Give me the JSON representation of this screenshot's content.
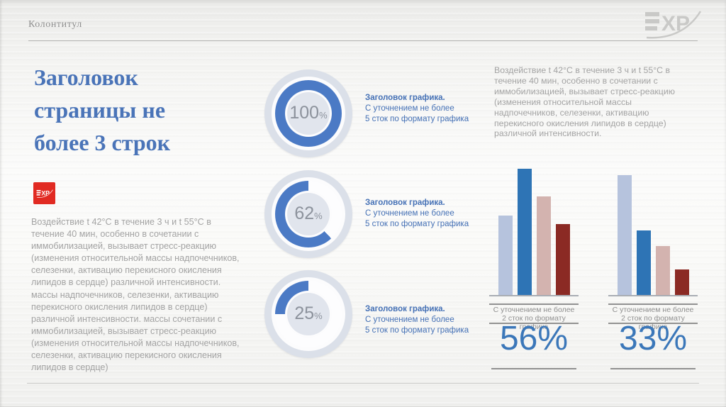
{
  "slide": {
    "header_label": "Колонтитул",
    "title_lines": [
      "Заголовок",
      "страницы не",
      "более 3 строк"
    ],
    "title_full": "Заголовок страницы не более 3 строк",
    "brand": {
      "logo_text": "EXP",
      "logo_xp": "XP"
    }
  },
  "left_column": {
    "body": "Воздействие t 42°C в течение 3 ч и t 55°C в течение 40 мин, особенно в сочетании с иммобилизацией, вызывает стресс-реакцию (изменения относительной массы надпочечников, селезенки, активацию перекисного окисления липидов в сердце) различной интенсивности. массы надпочечников, селезенки, активацию перекисного окисления липидов в сердце) различной интенсивности. массы сочетании с иммобилизацией, вызывает стресс-реакцию (изменения относительной массы надпочечников, селезенки, активацию перекисного окисления липидов в сердце)"
  },
  "right_column": {
    "body": "Воздействие t 42°C в течение 3 ч и t 55°C в течение 40 мин, особенно в сочетании с иммобилизацией, вызывает стресс-реакцию (изменения относительной массы надпочечников, селезенки, активацию перекисного окисления липидов в сердце) различной интенсивности."
  },
  "chart_data": {
    "donuts": [
      {
        "type": "pie",
        "subtype": "donut",
        "value_pct": 100,
        "value_label": "100",
        "unit": "%",
        "caption_title": "Заголовок графика.",
        "caption_line2": "С уточнением не более",
        "caption_line3": "5 сток по формату графика"
      },
      {
        "type": "pie",
        "subtype": "donut",
        "value_pct": 62,
        "value_label": "62",
        "unit": "%",
        "caption_title": "Заголовок графика.",
        "caption_line2": "С уточнением не более",
        "caption_line3": "5 сток по формату графика"
      },
      {
        "type": "pie",
        "subtype": "donut",
        "value_pct": 25,
        "value_label": "25",
        "unit": "%",
        "caption_title": "Заголовок графика.",
        "caption_line2": "С уточнением не более",
        "caption_line3": "5 сток по формату графика"
      }
    ],
    "bar_charts": [
      {
        "type": "bar",
        "categories": [],
        "values": [
          63,
          100,
          78,
          56
        ],
        "ymax": 100,
        "bar_colors": [
          "#b6c3dd",
          "#2e74b5",
          "#d3b3af",
          "#8b2a24"
        ],
        "grid": false,
        "legend": false,
        "caption_line1": "С уточнением не более",
        "caption_line2": "2 сток по формату",
        "caption_line3": "графика",
        "big_value": "56%"
      },
      {
        "type": "bar",
        "categories": [],
        "values": [
          95,
          51,
          39,
          20
        ],
        "ymax": 100,
        "bar_colors": [
          "#b6c3dd",
          "#2e74b5",
          "#d3b3af",
          "#8b2a24"
        ],
        "grid": false,
        "legend": false,
        "caption_line1": "С уточнением не более",
        "caption_line2": "2 сток по формату",
        "caption_line3": "графика",
        "big_value": "33%"
      }
    ]
  },
  "colors": {
    "title_blue": "#4a74b8",
    "caption_blue": "#4470b5",
    "donut_fill": "#4b7ac5",
    "donut_track": "#fdfdfe",
    "donut_plate": "#dbe0e9",
    "bar_blue": "#2e74b5",
    "big_number_blue": "#3b77b9",
    "logo_red": "#e12a22",
    "body_gray": "#a3a3a3"
  }
}
